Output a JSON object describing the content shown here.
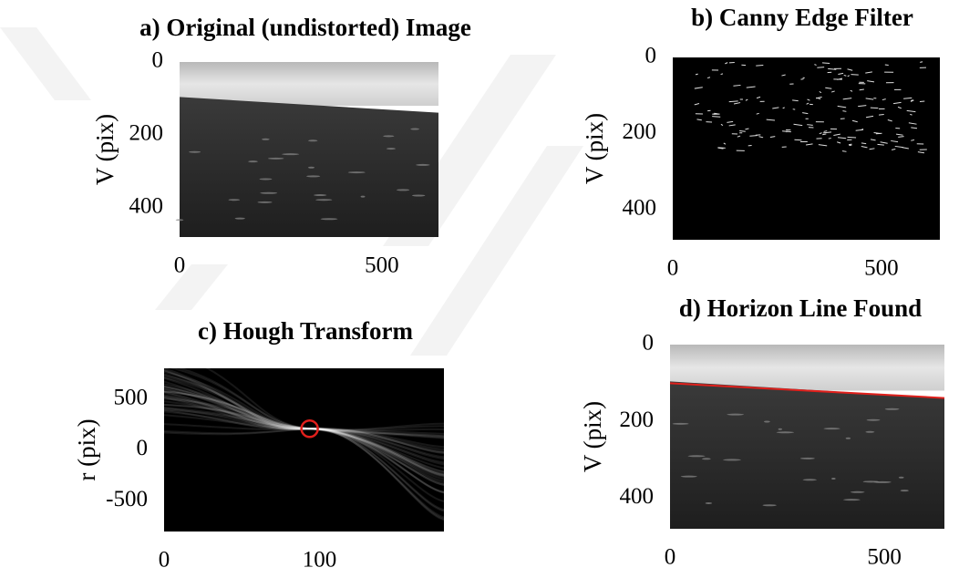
{
  "chart_data": [
    {
      "type": "image",
      "title": "a) Original (undistorted) Image",
      "ylabel": "V (pix)",
      "xlim": [
        0,
        640
      ],
      "ylim": [
        480,
        0
      ],
      "xticks": [
        0,
        500
      ],
      "yticks": [
        0,
        200,
        400
      ]
    },
    {
      "type": "image",
      "title": "b) Canny Edge Filter",
      "ylabel": "V (pix)",
      "xlim": [
        0,
        640
      ],
      "ylim": [
        480,
        0
      ],
      "xticks": [
        0,
        500
      ],
      "yticks": [
        0,
        200,
        400
      ]
    },
    {
      "type": "image",
      "title": "c) Hough Transform",
      "ylabel": "r (pix)",
      "xlim": [
        0,
        180
      ],
      "ylim": [
        -800,
        800
      ],
      "xticks": [
        0,
        100
      ],
      "yticks": [
        500,
        0,
        -500
      ]
    },
    {
      "type": "image",
      "title": "d) Horizon Line Found",
      "ylabel": "V (pix)",
      "xlim": [
        0,
        640
      ],
      "ylim": [
        480,
        0
      ],
      "xticks": [
        0,
        500
      ],
      "yticks": [
        0,
        200,
        400
      ]
    }
  ]
}
